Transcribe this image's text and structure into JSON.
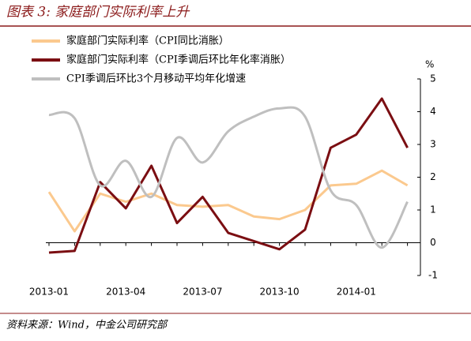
{
  "chart_data": {
    "type": "line",
    "title": "图表 3: 家庭部门实际利率上升",
    "unit": "%",
    "source": "资料来源：Wind，中金公司研究部",
    "categories": [
      "2013-01",
      null,
      null,
      "2013-04",
      null,
      null,
      "2013-07",
      null,
      null,
      "2013-10",
      null,
      null,
      "2014-01",
      null,
      null
    ],
    "series": [
      {
        "name": "家庭部门实际利率（CPI同比消胀）",
        "color": "#fbc98e",
        "smooth": false,
        "values": [
          1.55,
          0.35,
          1.5,
          1.25,
          1.5,
          1.15,
          1.1,
          1.15,
          0.8,
          0.72,
          1.0,
          1.75,
          1.8,
          2.2,
          1.75
        ]
      },
      {
        "name": "家庭部门实际利率（CPI季调后环比年化率消胀）",
        "color": "#7b0e12",
        "smooth": false,
        "values": [
          -0.3,
          -0.25,
          1.85,
          1.05,
          2.35,
          0.6,
          1.4,
          0.3,
          0.05,
          -0.2,
          0.4,
          2.9,
          3.3,
          4.4,
          2.9
        ]
      },
      {
        "name": "CPI季调后环比3个月移动平均年化增速",
        "color": "#bfbfbf",
        "smooth": true,
        "values": [
          3.9,
          3.8,
          1.75,
          2.5,
          1.4,
          3.2,
          2.45,
          3.4,
          3.85,
          4.1,
          3.85,
          1.6,
          1.15,
          -0.15,
          1.25
        ]
      }
    ],
    "ylim": [
      -1,
      5
    ],
    "yticks": [
      -1,
      0,
      1,
      2,
      3,
      4,
      5
    ]
  }
}
